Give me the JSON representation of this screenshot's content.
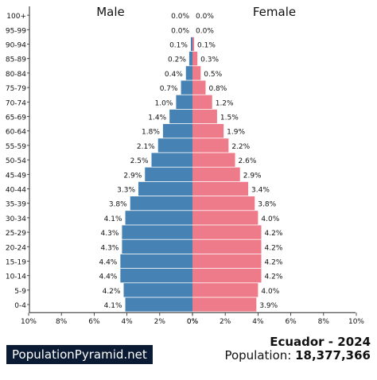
{
  "headers": {
    "male": "Male",
    "female": "Female"
  },
  "branding": {
    "site": "PopulationPyramid.net"
  },
  "summary": {
    "country_year": "Ecuador - 2024",
    "population_label": "Population: ",
    "population_value": "18,377,366"
  },
  "chart_data": {
    "type": "bar",
    "orientation": "horizontal-pyramid",
    "categories": [
      "100+",
      "95-99",
      "90-94",
      "85-89",
      "80-84",
      "75-79",
      "70-74",
      "65-69",
      "60-64",
      "55-59",
      "50-54",
      "45-49",
      "40-44",
      "35-39",
      "30-34",
      "25-29",
      "20-24",
      "15-19",
      "10-14",
      "5-9",
      "0-4"
    ],
    "series": [
      {
        "name": "Male",
        "color": "#4682b4",
        "values": [
          0.0,
          0.0,
          0.1,
          0.2,
          0.4,
          0.7,
          1.0,
          1.4,
          1.8,
          2.1,
          2.5,
          2.9,
          3.3,
          3.8,
          4.1,
          4.3,
          4.3,
          4.4,
          4.4,
          4.2,
          4.1
        ],
        "labels": [
          "0.0%",
          "0.0%",
          "0.1%",
          "0.2%",
          "0.4%",
          "0.7%",
          "1.0%",
          "1.4%",
          "1.8%",
          "2.1%",
          "2.5%",
          "2.9%",
          "3.3%",
          "3.8%",
          "4.1%",
          "4.3%",
          "4.3%",
          "4.4%",
          "4.4%",
          "4.2%",
          "4.1%"
        ]
      },
      {
        "name": "Female",
        "color": "#ee7b89",
        "values": [
          0.0,
          0.0,
          0.1,
          0.3,
          0.5,
          0.8,
          1.2,
          1.5,
          1.9,
          2.2,
          2.6,
          2.9,
          3.4,
          3.8,
          4.0,
          4.2,
          4.2,
          4.2,
          4.2,
          4.0,
          3.9
        ],
        "labels": [
          "0.0%",
          "0.0%",
          "0.1%",
          "0.3%",
          "0.5%",
          "0.8%",
          "1.2%",
          "1.5%",
          "1.9%",
          "2.2%",
          "2.6%",
          "2.9%",
          "3.4%",
          "3.8%",
          "4.0%",
          "4.2%",
          "4.2%",
          "4.2%",
          "4.2%",
          "4.0%",
          "3.9%"
        ]
      }
    ],
    "xlim": [
      0,
      10
    ],
    "xticks_left": [
      "10%",
      "8%",
      "6%",
      "4%",
      "2%",
      "0%"
    ],
    "xticks_right": [
      "0%",
      "2%",
      "4%",
      "6%",
      "8%",
      "10%"
    ]
  }
}
